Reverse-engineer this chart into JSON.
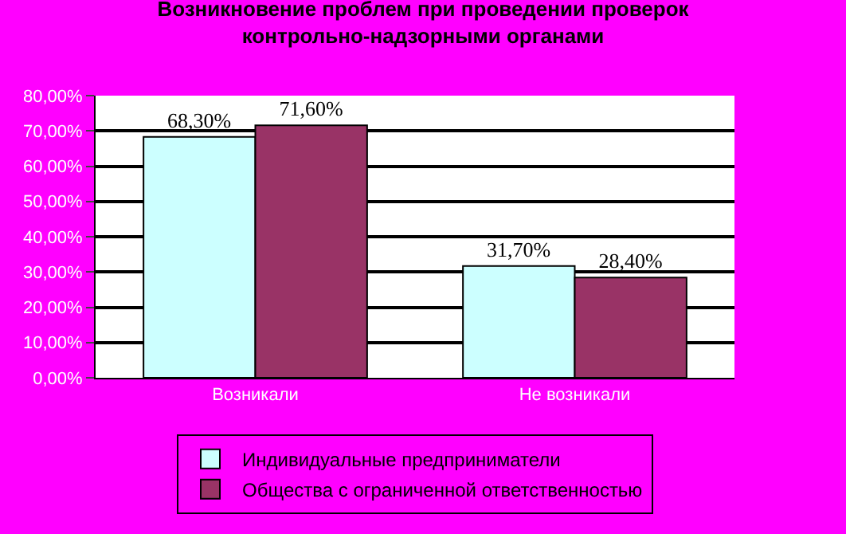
{
  "chart_data": {
    "type": "bar",
    "title": "Возникновение проблем при проведении проверок\nконтрольно-надзорными органами",
    "categories": [
      "Возникали",
      "Не возникали"
    ],
    "series": [
      {
        "name": "Индивидуальные предприниматели",
        "color": "#ccffff",
        "values": [
          68.3,
          31.7
        ],
        "value_labels": [
          "68,30%",
          "31,70%"
        ]
      },
      {
        "name": "Общества с ограниченной ответственностью",
        "color": "#993366",
        "values": [
          71.6,
          28.4
        ],
        "value_labels": [
          "71,60%",
          "28,40%"
        ]
      }
    ],
    "ylim": [
      0,
      80
    ],
    "yticks": [
      {
        "value": 0,
        "label": "0,00%"
      },
      {
        "value": 10,
        "label": "10,00%"
      },
      {
        "value": 20,
        "label": "20,00%"
      },
      {
        "value": 30,
        "label": "30,00%"
      },
      {
        "value": 40,
        "label": "40,00%"
      },
      {
        "value": 50,
        "label": "50,00%"
      },
      {
        "value": 60,
        "label": "60,00%"
      },
      {
        "value": 70,
        "label": "70,00%"
      },
      {
        "value": 80,
        "label": "80,00%"
      }
    ],
    "grid": "y",
    "legend": "bottom"
  }
}
